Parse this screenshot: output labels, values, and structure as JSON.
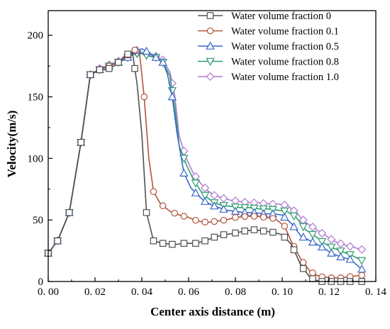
{
  "chart_data": {
    "type": "line",
    "xlabel": "Center axis distance (m)",
    "ylabel": "Velocity(m/s)",
    "xlim": [
      0,
      0.14
    ],
    "ylim": [
      0,
      220
    ],
    "x_ticks": [
      0,
      0.02,
      0.04,
      0.06,
      0.08,
      0.1,
      0.12,
      0.14
    ],
    "x_tick_labels": [
      "0. 00",
      "0. 02",
      "0. 04",
      "0. 06",
      "0. 08",
      "0. 10",
      "0. 12",
      "0. 14"
    ],
    "y_ticks": [
      0,
      50,
      100,
      150,
      200
    ],
    "y_tick_labels": [
      "0",
      "50",
      "100",
      "150",
      "200"
    ],
    "grid": false,
    "legend_position": "top-right",
    "series": [
      {
        "name": "Water volume fraction 0",
        "color": "#505050",
        "marker": "square",
        "x": [
          0.0,
          0.004,
          0.009,
          0.014,
          0.018,
          0.022,
          0.025,
          0.029,
          0.033,
          0.036,
          0.038,
          0.04,
          0.042,
          0.045,
          0.049,
          0.054,
          0.058,
          0.063,
          0.067,
          0.071,
          0.075,
          0.079,
          0.084,
          0.088,
          0.092,
          0.096,
          0.1,
          0.104,
          0.108,
          0.112,
          0.116,
          0.121,
          0.125,
          0.129,
          0.134
        ],
        "y": [
          23,
          33,
          56,
          113,
          168,
          172,
          172,
          176,
          184,
          186,
          160,
          120,
          56,
          33,
          31,
          30,
          31,
          31,
          33,
          36,
          38,
          39,
          41,
          42,
          41,
          40,
          38,
          30,
          13,
          3,
          0,
          0,
          0,
          0,
          0
        ],
        "markers_at": [
          0.0,
          0.004,
          0.009,
          0.014,
          0.018,
          0.022,
          0.026,
          0.03,
          0.034,
          0.037,
          0.042,
          0.045,
          0.049,
          0.053,
          0.058,
          0.063,
          0.067,
          0.071,
          0.075,
          0.08,
          0.084,
          0.088,
          0.092,
          0.096,
          0.101,
          0.105,
          0.109,
          0.113,
          0.117,
          0.121,
          0.125,
          0.129,
          0.134
        ]
      },
      {
        "name": "Water volume fraction 0.1",
        "color": "#b0553a",
        "marker": "circle",
        "x": [
          0.0,
          0.004,
          0.009,
          0.014,
          0.018,
          0.022,
          0.026,
          0.03,
          0.034,
          0.037,
          0.039,
          0.041,
          0.043,
          0.045,
          0.048,
          0.052,
          0.056,
          0.06,
          0.064,
          0.068,
          0.072,
          0.076,
          0.08,
          0.085,
          0.089,
          0.093,
          0.097,
          0.101,
          0.104,
          0.108,
          0.112,
          0.116,
          0.121,
          0.125,
          0.129,
          0.134
        ],
        "y": [
          23,
          33,
          56,
          113,
          168,
          172,
          175,
          178,
          184,
          188,
          186,
          150,
          100,
          73,
          63,
          57,
          54,
          52,
          49,
          48,
          49,
          50,
          52,
          53,
          53,
          52,
          51,
          45,
          32,
          18,
          8,
          4,
          3,
          3,
          4,
          5
        ],
        "markers_at": [
          0.0,
          0.004,
          0.009,
          0.014,
          0.018,
          0.022,
          0.026,
          0.03,
          0.034,
          0.037,
          0.041,
          0.045,
          0.049,
          0.054,
          0.058,
          0.063,
          0.067,
          0.071,
          0.075,
          0.08,
          0.084,
          0.088,
          0.092,
          0.096,
          0.101,
          0.105,
          0.109,
          0.113,
          0.117,
          0.121,
          0.125,
          0.129,
          0.134
        ]
      },
      {
        "name": "Water volume fraction 0.5",
        "color": "#3a68c8",
        "marker": "triangle-up",
        "x": [
          0.0,
          0.004,
          0.009,
          0.014,
          0.018,
          0.022,
          0.026,
          0.03,
          0.034,
          0.037,
          0.04,
          0.043,
          0.046,
          0.049,
          0.051,
          0.053,
          0.055,
          0.058,
          0.061,
          0.064,
          0.067,
          0.07,
          0.073,
          0.076,
          0.08,
          0.084,
          0.088,
          0.092,
          0.096,
          0.1,
          0.104,
          0.108,
          0.112,
          0.117,
          0.121,
          0.125,
          0.129,
          0.134
        ],
        "y": [
          23,
          33,
          56,
          113,
          168,
          172,
          175,
          178,
          182,
          187,
          189,
          186,
          182,
          178,
          168,
          150,
          121,
          88,
          76,
          70,
          65,
          62,
          60,
          58,
          57,
          56,
          56,
          55,
          55,
          54,
          47,
          37,
          33,
          28,
          23,
          20,
          18,
          10
        ],
        "markers_at": [
          0.0,
          0.004,
          0.009,
          0.014,
          0.018,
          0.022,
          0.026,
          0.03,
          0.034,
          0.038,
          0.042,
          0.046,
          0.049,
          0.053,
          0.058,
          0.063,
          0.067,
          0.071,
          0.075,
          0.08,
          0.084,
          0.088,
          0.092,
          0.096,
          0.101,
          0.105,
          0.109,
          0.113,
          0.117,
          0.121,
          0.125,
          0.129,
          0.134
        ]
      },
      {
        "name": "Water volume fraction 0.8",
        "color": "#2e9e6e",
        "marker": "triangle-down",
        "x": [
          0.0,
          0.004,
          0.009,
          0.014,
          0.018,
          0.022,
          0.026,
          0.03,
          0.034,
          0.037,
          0.04,
          0.043,
          0.046,
          0.049,
          0.052,
          0.054,
          0.056,
          0.059,
          0.062,
          0.065,
          0.068,
          0.071,
          0.074,
          0.078,
          0.082,
          0.086,
          0.09,
          0.094,
          0.098,
          0.102,
          0.106,
          0.11,
          0.114,
          0.118,
          0.122,
          0.126,
          0.13,
          0.134
        ],
        "y": [
          23,
          33,
          56,
          113,
          168,
          172,
          175,
          178,
          182,
          185,
          185,
          183,
          182,
          178,
          167,
          143,
          110,
          95,
          83,
          74,
          68,
          64,
          62,
          61,
          60,
          60,
          59,
          59,
          58,
          57,
          52,
          42,
          37,
          31,
          27,
          24,
          21,
          17
        ],
        "markers_at": [
          0.0,
          0.004,
          0.009,
          0.014,
          0.018,
          0.022,
          0.026,
          0.03,
          0.034,
          0.038,
          0.042,
          0.046,
          0.049,
          0.053,
          0.058,
          0.063,
          0.067,
          0.071,
          0.075,
          0.08,
          0.084,
          0.088,
          0.092,
          0.096,
          0.101,
          0.105,
          0.109,
          0.113,
          0.117,
          0.121,
          0.125,
          0.129,
          0.134
        ]
      },
      {
        "name": "Water volume fraction 1.0",
        "color": "#b07ad0",
        "marker": "diamond",
        "x": [
          0.0,
          0.004,
          0.009,
          0.014,
          0.018,
          0.022,
          0.026,
          0.03,
          0.034,
          0.037,
          0.04,
          0.043,
          0.046,
          0.049,
          0.052,
          0.054,
          0.056,
          0.059,
          0.062,
          0.065,
          0.068,
          0.071,
          0.074,
          0.078,
          0.082,
          0.086,
          0.09,
          0.094,
          0.098,
          0.102,
          0.106,
          0.11,
          0.114,
          0.118,
          0.122,
          0.126,
          0.13,
          0.134
        ],
        "y": [
          23,
          33,
          56,
          113,
          168,
          173,
          176,
          179,
          182,
          185,
          186,
          184,
          183,
          180,
          170,
          152,
          118,
          100,
          88,
          80,
          74,
          70,
          68,
          66,
          65,
          64,
          64,
          63,
          63,
          62,
          56,
          48,
          43,
          38,
          33,
          30,
          28,
          26
        ],
        "markers_at": [
          0.0,
          0.004,
          0.009,
          0.014,
          0.018,
          0.022,
          0.026,
          0.03,
          0.034,
          0.038,
          0.042,
          0.046,
          0.049,
          0.053,
          0.058,
          0.063,
          0.067,
          0.071,
          0.075,
          0.08,
          0.084,
          0.088,
          0.092,
          0.096,
          0.101,
          0.105,
          0.109,
          0.113,
          0.117,
          0.121,
          0.125,
          0.129,
          0.134
        ]
      }
    ]
  }
}
